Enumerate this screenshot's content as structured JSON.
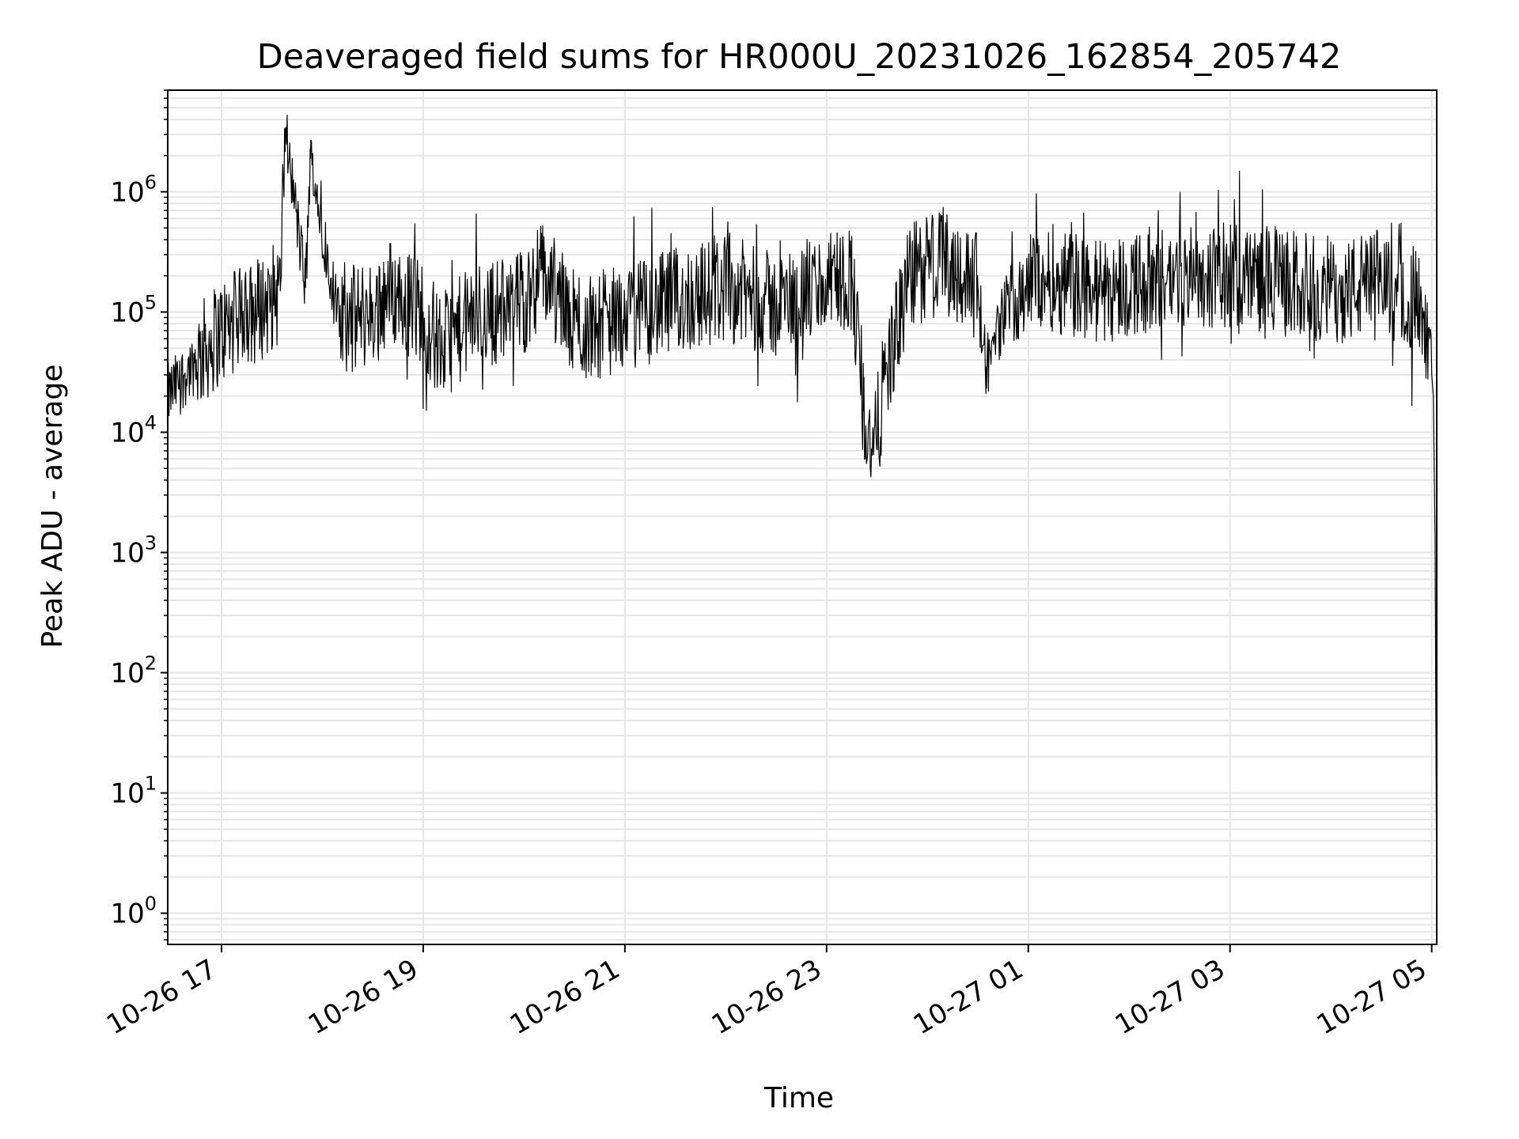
{
  "chart_data": {
    "type": "line",
    "title": "Deaveraged field sums for HR000U_20231026_162854_205742",
    "xlabel": "Time",
    "ylabel": "Peak ADU - average",
    "yscale": "log",
    "ylim": [
      0.55,
      7000000
    ],
    "xlim": [
      "10-26 16:28:54",
      "10-27 05:03:00"
    ],
    "x_tick_labels": [
      "10-26 17",
      "10-26 19",
      "10-26 21",
      "10-26 23",
      "10-27 01",
      "10-27 03",
      "10-27 05"
    ],
    "x_ticks": [
      "10-26 17:00",
      "10-26 19:00",
      "10-26 21:00",
      "10-26 23:00",
      "10-27 01:00",
      "10-27 03:00",
      "10-27 05:00"
    ],
    "y_ticks": [
      {
        "value": 1,
        "base": "10",
        "exp": "0"
      },
      {
        "value": 10,
        "base": "10",
        "exp": "1"
      },
      {
        "value": 100,
        "base": "10",
        "exp": "2"
      },
      {
        "value": 1000,
        "base": "10",
        "exp": "3"
      },
      {
        "value": 10000,
        "base": "10",
        "exp": "4"
      },
      {
        "value": 100000,
        "base": "10",
        "exp": "5"
      },
      {
        "value": 1000000,
        "base": "10",
        "exp": "6"
      }
    ],
    "grid": true,
    "line_color": "#000000",
    "grid_color": "#e6e6e6",
    "series": [
      {
        "x": [
          "10-26 16:28",
          "10-26 16:45",
          "10-26 17:00",
          "10-26 17:20",
          "10-26 17:35",
          "10-26 17:38",
          "10-26 17:50",
          "10-26 17:53",
          "10-26 18:10",
          "10-26 18:30",
          "10-26 18:40",
          "10-26 19:00",
          "10-26 19:10",
          "10-26 19:30",
          "10-26 20:00",
          "10-26 20:10",
          "10-26 20:20",
          "10-26 20:30",
          "10-26 21:00",
          "10-26 21:30",
          "10-26 22:00",
          "10-26 22:30",
          "10-26 22:50",
          "10-26 23:15",
          "10-26 23:22",
          "10-26 23:28",
          "10-26 23:35",
          "10-26 23:50",
          "10-27 00:10",
          "10-27 00:30",
          "10-27 00:35",
          "10-27 00:50",
          "10-27 01:10",
          "10-27 01:40",
          "10-27 02:10",
          "10-27 02:40",
          "10-27 03:10",
          "10-27 03:40",
          "10-27 04:10",
          "10-27 04:30",
          "10-27 04:50",
          "10-27 04:58",
          "10-27 05:01",
          "10-27 05:02",
          "10-27 05:03"
        ],
        "y": [
          20000,
          40000,
          70000,
          100000,
          150000,
          3300000,
          160000,
          1900000,
          80000,
          100000,
          150000,
          100000,
          50000,
          90000,
          120000,
          220000,
          140000,
          70000,
          90000,
          120000,
          160000,
          110000,
          150000,
          200000,
          15000,
          6500,
          30000,
          200000,
          280000,
          160000,
          35000,
          150000,
          200000,
          150000,
          180000,
          200000,
          200000,
          170000,
          150000,
          180000,
          130000,
          70000,
          20000,
          1400,
          1.1
        ]
      }
    ]
  }
}
